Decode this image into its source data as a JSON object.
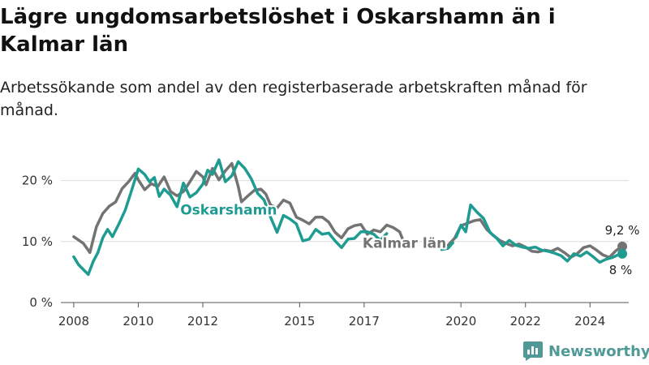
{
  "title": "Lägre ungdomsarbetslöshet i Oskarshamn än i Kalmar län",
  "subtitle": "Arbetssökande som andel av den registerbaserade arbetskraften månad för månad.",
  "brand": {
    "name": "Newsworthy",
    "color": "#4f9a96"
  },
  "chart_data": {
    "type": "line",
    "y_unit": "%",
    "ylim": [
      0,
      25
    ],
    "y_ticks": [
      0,
      10,
      20
    ],
    "y_tick_labels": [
      "0 %",
      "10 %",
      "20 %"
    ],
    "xlim": [
      2007.6,
      2025.2
    ],
    "x_ticks": [
      2008,
      2010,
      2012,
      2015,
      2017,
      2020,
      2022,
      2024
    ],
    "x_tick_labels": [
      "2008",
      "2010",
      "2012",
      "2015",
      "2017",
      "2020",
      "2022",
      "2024"
    ],
    "grid": true,
    "legend": "inline labels",
    "series": [
      {
        "name": "Kalmar län",
        "color": "#737373",
        "end_label": "9,2 %",
        "x": [
          2008.0,
          2008.3,
          2008.5,
          2008.7,
          2008.9,
          2009.1,
          2009.3,
          2009.5,
          2009.7,
          2009.9,
          2010.0,
          2010.2,
          2010.4,
          2010.6,
          2010.8,
          2011.0,
          2011.2,
          2011.4,
          2011.6,
          2011.8,
          2012.0,
          2012.1,
          2012.3,
          2012.5,
          2012.7,
          2012.9,
          2013.1,
          2013.2,
          2013.4,
          2013.6,
          2013.8,
          2013.95,
          2014.1,
          2014.3,
          2014.5,
          2014.7,
          2014.9,
          2015.1,
          2015.3,
          2015.5,
          2015.7,
          2015.9,
          2016.1,
          2016.3,
          2016.5,
          2016.7,
          2016.9,
          2017.1,
          2017.3,
          2017.5,
          2017.7,
          2017.9,
          2018.1,
          2018.2,
          null,
          2019.6,
          2019.8,
          2020.0,
          2020.2,
          2020.4,
          2020.6,
          2020.8,
          2021.0,
          2021.2,
          2021.4,
          2021.6,
          2021.8,
          2022.0,
          2022.2,
          2022.4,
          2022.6,
          2022.8,
          2023.0,
          2023.2,
          2023.4,
          2023.6,
          2023.8,
          2024.0,
          2024.2,
          2024.4,
          2024.6,
          2024.8,
          2025.0
        ],
        "y": [
          10.8,
          9.7,
          8.2,
          12.4,
          14.6,
          15.8,
          16.5,
          18.7,
          19.8,
          21.2,
          20.1,
          18.5,
          19.5,
          19.0,
          20.6,
          18.2,
          17.5,
          18.2,
          19.8,
          21.5,
          20.6,
          19.3,
          22.0,
          20.1,
          21.6,
          22.8,
          19.0,
          16.5,
          17.5,
          18.4,
          18.6,
          17.8,
          16.0,
          15.5,
          16.8,
          16.3,
          14.0,
          13.5,
          12.9,
          14.0,
          14.0,
          13.2,
          11.5,
          10.6,
          12.1,
          12.6,
          12.8,
          11.2,
          11.9,
          11.6,
          12.7,
          12.3,
          11.6,
          10.3,
          null,
          9.4,
          10.5,
          12.6,
          13.0,
          13.4,
          13.6,
          12.0,
          11.0,
          10.2,
          9.7,
          9.3,
          9.6,
          9.1,
          8.4,
          8.3,
          8.6,
          8.4,
          8.9,
          8.2,
          7.4,
          8.0,
          9.0,
          9.3,
          8.6,
          7.8,
          7.4,
          8.5,
          9.2
        ]
      },
      {
        "name": "Oskarshamn",
        "color": "#1f9c92",
        "end_label": "8 %",
        "x": [
          2008.0,
          2008.15,
          2008.3,
          2008.45,
          2008.6,
          2008.75,
          2008.9,
          2009.05,
          2009.2,
          2009.4,
          2009.6,
          2009.8,
          2010.0,
          2010.2,
          2010.35,
          2010.5,
          2010.65,
          2010.8,
          2011.0,
          2011.2,
          2011.4,
          2011.6,
          2011.8,
          2012.0,
          2012.15,
          2012.3,
          2012.5,
          2012.7,
          2012.9,
          2013.1,
          2013.3,
          2013.5,
          2013.7,
          2013.9,
          2014.1,
          2014.3,
          2014.5,
          2014.7,
          2014.9,
          2015.1,
          2015.3,
          2015.5,
          2015.7,
          2015.9,
          2016.1,
          2016.3,
          2016.5,
          2016.7,
          2016.9,
          2017.1,
          2017.3,
          2017.5,
          2017.7,
          null,
          2019.4,
          2019.6,
          2019.75,
          null,
          2019.85,
          2020.0,
          2020.15,
          2020.3,
          2020.5,
          2020.7,
          2020.9,
          2021.1,
          2021.3,
          2021.5,
          2021.7,
          2021.9,
          2022.1,
          2022.3,
          2022.5,
          2022.7,
          2022.9,
          2023.1,
          2023.3,
          2023.5,
          2023.7,
          2023.9,
          2024.1,
          2024.3,
          2024.5,
          2024.7,
          2024.9,
          2025.0
        ],
        "y": [
          7.5,
          6.2,
          5.4,
          4.6,
          6.7,
          8.2,
          10.6,
          12.0,
          10.8,
          12.9,
          15.2,
          18.5,
          21.9,
          21.0,
          19.8,
          20.5,
          17.4,
          18.6,
          17.6,
          15.7,
          19.6,
          17.3,
          18.0,
          19.4,
          21.7,
          21.0,
          23.4,
          19.8,
          20.8,
          23.1,
          22.0,
          20.3,
          17.9,
          16.8,
          14.0,
          11.5,
          14.3,
          13.7,
          12.9,
          10.1,
          10.4,
          12.0,
          11.2,
          11.4,
          10.1,
          9.0,
          10.4,
          10.5,
          11.6,
          11.6,
          11.2,
          10.2,
          11.3,
          null,
          8.7,
          8.9,
          9.8,
          null,
          10.7,
          12.7,
          11.6,
          16.0,
          14.8,
          13.8,
          11.5,
          10.6,
          9.3,
          10.2,
          9.4,
          9.1,
          8.9,
          9.1,
          8.6,
          8.4,
          8.1,
          7.7,
          6.8,
          8.0,
          7.6,
          8.3,
          7.5,
          6.6,
          7.1,
          7.4,
          7.9,
          8.0
        ]
      }
    ],
    "inline_labels": [
      "Oskarshamn",
      "Kalmar län"
    ]
  }
}
